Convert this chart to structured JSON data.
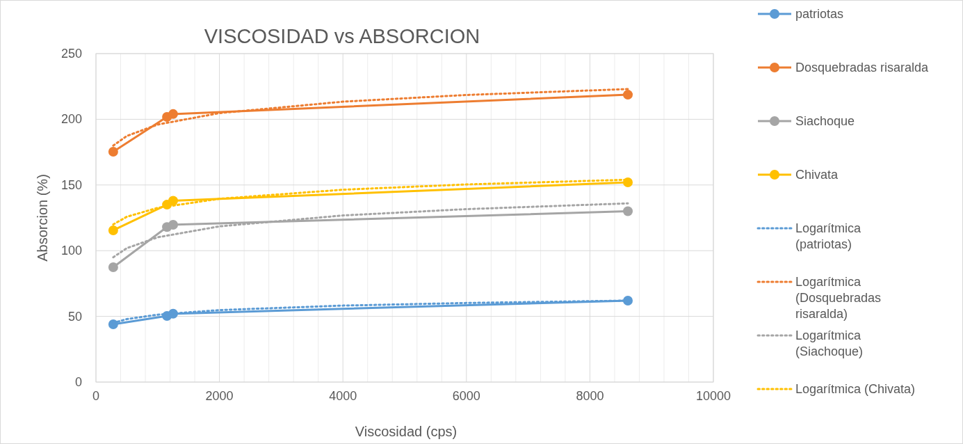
{
  "chart_data": {
    "type": "line",
    "title": "VISCOSIDAD vs ABSORCION",
    "xlabel": "Viscosidad (cps)",
    "ylabel": "Absorcion (%)",
    "xlim": [
      0,
      10000
    ],
    "xticks": [
      0,
      {
        "value": 400,
        "label": null
      },
      {
        "value": 800,
        "label": null
      },
      {
        "value": 1200,
        "label": null
      },
      {
        "value": 1600,
        "label": null
      },
      2000,
      {
        "value": 2400,
        "label": null
      },
      {
        "value": 2800,
        "label": null
      },
      {
        "value": 3200,
        "label": null
      },
      {
        "value": 3600,
        "label": null
      },
      4000,
      {
        "value": 4400,
        "label": null
      },
      {
        "value": 4800,
        "label": null
      },
      {
        "value": 5200,
        "label": null
      },
      {
        "value": 5600,
        "label": null
      },
      6000,
      {
        "value": 6400,
        "label": null
      },
      {
        "value": 6800,
        "label": null
      },
      {
        "value": 7200,
        "label": null
      },
      {
        "value": 7600,
        "label": null
      },
      8000,
      {
        "value": 8400,
        "label": null
      },
      {
        "value": 8800,
        "label": null
      },
      {
        "value": 9200,
        "label": null
      },
      {
        "value": 9600,
        "label": null
      },
      10000
    ],
    "ylim": [
      0,
      250
    ],
    "yticks": [
      0,
      50,
      100,
      150,
      200,
      250
    ],
    "grid": true,
    "legend": "right",
    "marker": "circle",
    "line_style": "solid",
    "series": [
      {
        "name": "patriotas",
        "color": "#5b9bd5",
        "x": [
          280,
          1150,
          1250,
          8615
        ],
        "values": [
          44,
          50.3,
          52,
          62
        ]
      },
      {
        "name": "Dosquebradas risaralda",
        "color": "#ed7d31",
        "x": [
          280,
          1150,
          1250,
          8615
        ],
        "values": [
          175.3,
          201.8,
          204,
          218.7
        ]
      },
      {
        "name": "Siachoque",
        "color": "#a5a5a5",
        "x": [
          280,
          1150,
          1250,
          8615
        ],
        "values": [
          87.4,
          118,
          119.7,
          130
        ]
      },
      {
        "name": "Chivata",
        "color": "#ffc000",
        "x": [
          280,
          1150,
          1250,
          8615
        ],
        "values": [
          115.5,
          135,
          138,
          152
        ]
      },
      {
        "name": "Logarítmica (patriotas)",
        "color": "#5b9bd5",
        "marker": "none",
        "line_style": "dotted",
        "x": [
          280,
          500,
          1000,
          2000,
          4000,
          6000,
          8615
        ],
        "values": [
          45,
          47.9,
          51.3,
          54.8,
          58.2,
          60.2,
          62
        ]
      },
      {
        "name": "Logarítmica (Dosquebradas risaralda)",
        "color": "#ed7d31",
        "marker": "none",
        "line_style": "dotted",
        "x": [
          280,
          500,
          1000,
          2000,
          4000,
          6000,
          8615
        ],
        "values": [
          180,
          187.3,
          196,
          204.7,
          213.4,
          218.5,
          223
        ]
      },
      {
        "name": "Logarítmica (Siachoque)",
        "color": "#a5a5a5",
        "marker": "none",
        "line_style": "dotted",
        "x": [
          280,
          500,
          1000,
          2000,
          4000,
          6000,
          8615
        ],
        "values": [
          95,
          101.9,
          110.2,
          118.5,
          126.8,
          131.6,
          136
        ]
      },
      {
        "name": "Logarítmica (Chivata)",
        "color": "#ffc000",
        "marker": "none",
        "line_style": "dotted",
        "x": [
          280,
          500,
          1000,
          2000,
          4000,
          6000,
          8615
        ],
        "values": [
          120,
          125.8,
          132.6,
          139.5,
          146.4,
          150.4,
          154
        ]
      }
    ]
  }
}
